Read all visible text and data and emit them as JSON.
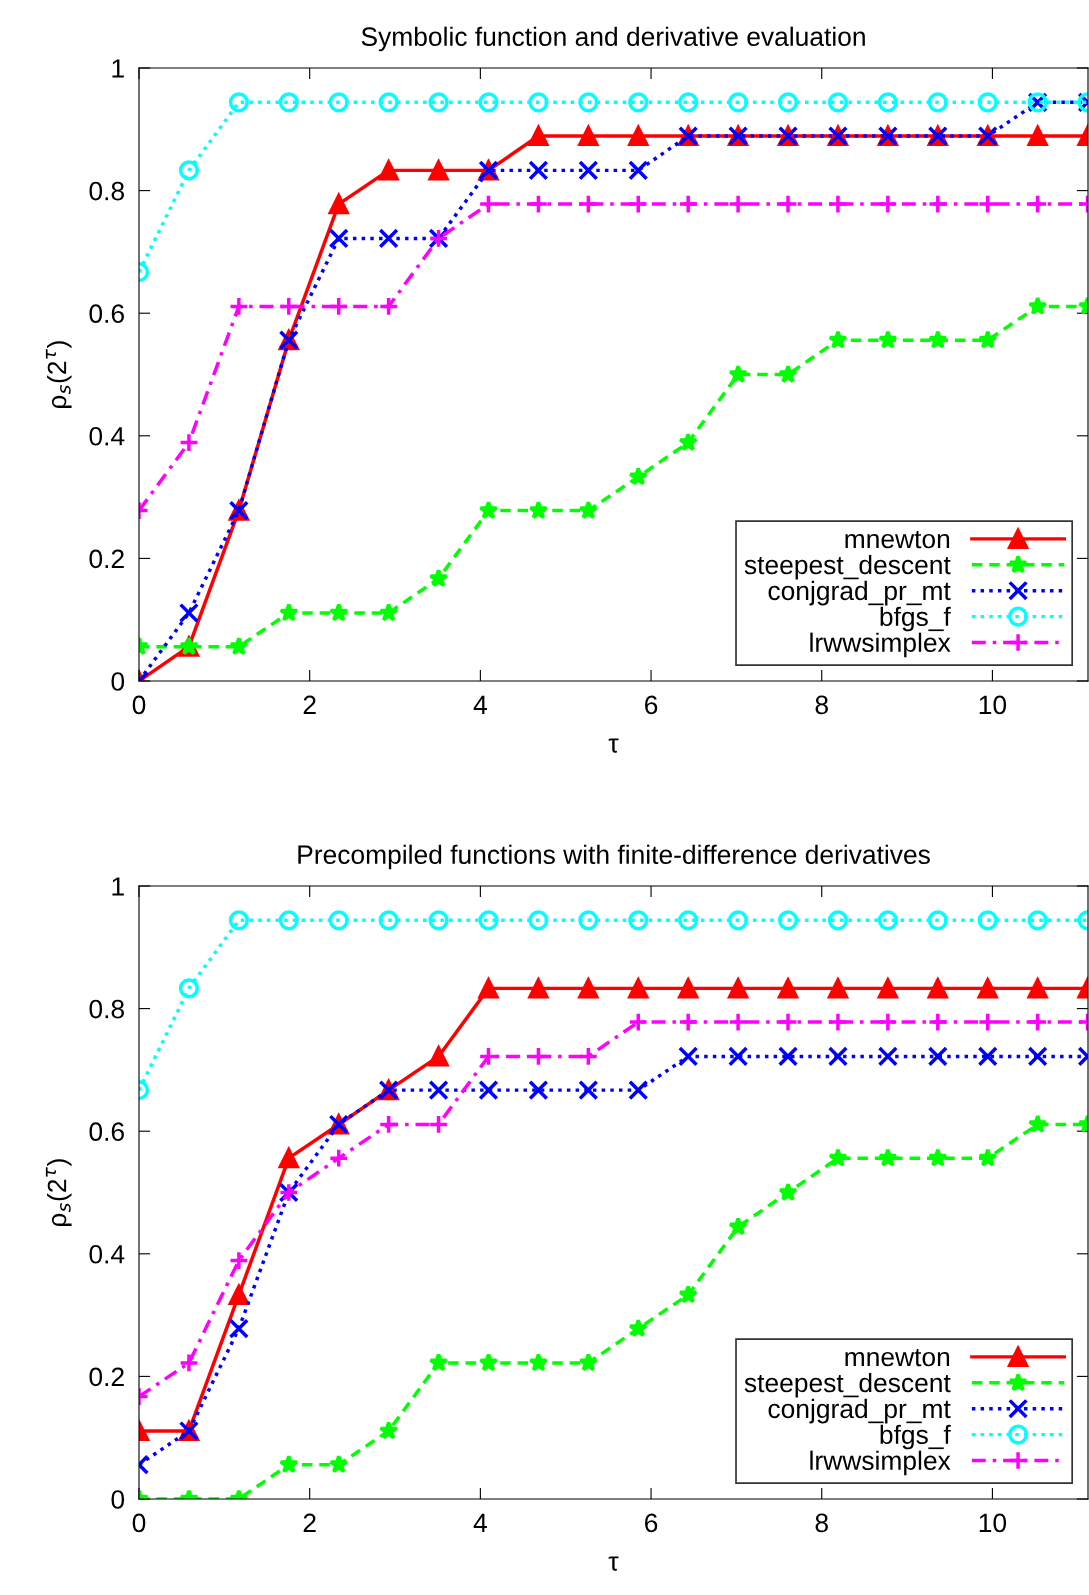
{
  "chart_data": [
    {
      "type": "line",
      "title": "Symbolic function and derivative evaluation",
      "xlabel": "τ",
      "ylabel": "ρ$_{s}$(2$^{τ}$)",
      "x": [
        0,
        0.585,
        1.17,
        1.755,
        2.34,
        2.925,
        3.51,
        4.095,
        4.68,
        5.265,
        5.85,
        6.435,
        7.02,
        7.605,
        8.19,
        8.775,
        9.36,
        9.945,
        10.53,
        11.115
      ],
      "xlim": [
        0,
        11.12
      ],
      "ylim": [
        0,
        1
      ],
      "xticks": [
        0,
        2,
        4,
        6,
        8,
        10
      ],
      "yticks": [
        0,
        0.2,
        0.4,
        0.6,
        0.8,
        1
      ],
      "grid": false,
      "legend": "bottom right",
      "series": [
        {
          "name": "mnewton",
          "color": "#ff0000",
          "marker": "triangle",
          "line_style": "solid",
          "values": [
            0,
            0.056,
            0.278,
            0.556,
            0.778,
            0.833,
            0.833,
            0.833,
            0.889,
            0.889,
            0.889,
            0.889,
            0.889,
            0.889,
            0.889,
            0.889,
            0.889,
            0.889,
            0.889,
            0.889
          ]
        },
        {
          "name": "steepest_descent",
          "color": "#00ff00",
          "marker": "star",
          "line_style": "dashed",
          "values": [
            0.056,
            0.056,
            0.056,
            0.111,
            0.111,
            0.111,
            0.167,
            0.278,
            0.278,
            0.278,
            0.333,
            0.389,
            0.5,
            0.5,
            0.556,
            0.556,
            0.556,
            0.556,
            0.611,
            0.611
          ]
        },
        {
          "name": "conjgrad_pr_mt",
          "color": "#0000ff",
          "marker": "cross",
          "line_style": "dotted",
          "values": [
            0,
            0.111,
            0.278,
            0.556,
            0.722,
            0.722,
            0.722,
            0.833,
            0.833,
            0.833,
            0.833,
            0.889,
            0.889,
            0.889,
            0.889,
            0.889,
            0.889,
            0.889,
            0.944,
            0.944
          ]
        },
        {
          "name": "bfgs_f",
          "color": "#00ffff",
          "marker": "circle",
          "line_style": "dotted",
          "values": [
            0.667,
            0.833,
            0.944,
            0.944,
            0.944,
            0.944,
            0.944,
            0.944,
            0.944,
            0.944,
            0.944,
            0.944,
            0.944,
            0.944,
            0.944,
            0.944,
            0.944,
            0.944,
            0.944,
            0.944
          ]
        },
        {
          "name": "lrwwsimplex",
          "color": "#ff00ff",
          "marker": "plus",
          "line_style": "dashdot",
          "values": [
            0.278,
            0.389,
            0.611,
            0.611,
            0.611,
            0.611,
            0.722,
            0.778,
            0.778,
            0.778,
            0.778,
            0.778,
            0.778,
            0.778,
            0.778,
            0.778,
            0.778,
            0.778,
            0.778,
            0.778
          ]
        }
      ]
    },
    {
      "type": "line",
      "title": "Precompiled functions with finite-difference derivatives",
      "xlabel": "τ",
      "ylabel": "ρ$_{s}$(2$^{τ}$)",
      "x": [
        0,
        0.585,
        1.17,
        1.755,
        2.34,
        2.925,
        3.51,
        4.095,
        4.68,
        5.265,
        5.85,
        6.435,
        7.02,
        7.605,
        8.19,
        8.775,
        9.36,
        9.945,
        10.53,
        11.115
      ],
      "xlim": [
        0,
        11.12
      ],
      "ylim": [
        0,
        1
      ],
      "xticks": [
        0,
        2,
        4,
        6,
        8,
        10
      ],
      "yticks": [
        0,
        0.2,
        0.4,
        0.6,
        0.8,
        1
      ],
      "grid": false,
      "legend": "bottom right",
      "series": [
        {
          "name": "mnewton",
          "color": "#ff0000",
          "marker": "triangle",
          "line_style": "solid",
          "values": [
            0.111,
            0.111,
            0.333,
            0.556,
            0.611,
            0.667,
            0.722,
            0.833,
            0.833,
            0.833,
            0.833,
            0.833,
            0.833,
            0.833,
            0.833,
            0.833,
            0.833,
            0.833,
            0.833,
            0.833
          ]
        },
        {
          "name": "steepest_descent",
          "color": "#00ff00",
          "marker": "star",
          "line_style": "dashed",
          "values": [
            0,
            0,
            0,
            0.056,
            0.056,
            0.111,
            0.222,
            0.222,
            0.222,
            0.222,
            0.278,
            0.333,
            0.444,
            0.5,
            0.556,
            0.556,
            0.556,
            0.556,
            0.611,
            0.611
          ]
        },
        {
          "name": "conjgrad_pr_mt",
          "color": "#0000ff",
          "marker": "cross",
          "line_style": "dotted",
          "values": [
            0.056,
            0.111,
            0.278,
            0.5,
            0.611,
            0.667,
            0.667,
            0.667,
            0.667,
            0.667,
            0.667,
            0.722,
            0.722,
            0.722,
            0.722,
            0.722,
            0.722,
            0.722,
            0.722,
            0.722
          ]
        },
        {
          "name": "bfgs_f",
          "color": "#00ffff",
          "marker": "circle",
          "line_style": "dotted",
          "values": [
            0.667,
            0.833,
            0.944,
            0.944,
            0.944,
            0.944,
            0.944,
            0.944,
            0.944,
            0.944,
            0.944,
            0.944,
            0.944,
            0.944,
            0.944,
            0.944,
            0.944,
            0.944,
            0.944,
            0.944
          ]
        },
        {
          "name": "lrwwsimplex",
          "color": "#ff00ff",
          "marker": "plus",
          "line_style": "dashdot",
          "values": [
            0.167,
            0.222,
            0.389,
            0.5,
            0.556,
            0.611,
            0.611,
            0.722,
            0.722,
            0.722,
            0.778,
            0.778,
            0.778,
            0.778,
            0.778,
            0.778,
            0.778,
            0.778,
            0.778,
            0.778
          ]
        }
      ]
    }
  ]
}
